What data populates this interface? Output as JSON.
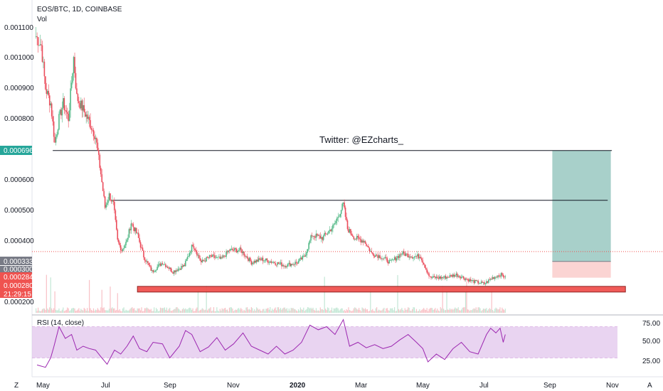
{
  "header": {
    "symbol": "EOS/BTC, 1D, COINBASE",
    "volume_label": "Vol",
    "rsi_label": "RSI (14, close)"
  },
  "annotation": "Twitter: @EZcharts_",
  "price_badges": {
    "resistance": "0.000696",
    "box_level": "0.000333",
    "current": "0.000284",
    "support": "0.000280",
    "countdown": "21:29:15",
    "hidden_label": "0.000300"
  },
  "bottom_buttons": {
    "left": "Z",
    "right": "A"
  },
  "colors": {
    "up": "#53b987",
    "down": "#eb4d5c",
    "zone": "#f05350",
    "target": "#9fcbc4",
    "rsi_line": "#9c27b0",
    "rsi_band": "#e1c6ec",
    "badge_green": "#26a69a",
    "badge_gray": "#787b86",
    "badge_red": "#ef5350"
  },
  "chart_data": [
    {
      "type": "candlestick",
      "title": "EOS/BTC, 1D, COINBASE",
      "x_ticks": [
        "May",
        "Jul",
        "Sep",
        "Nov",
        "2020",
        "Mar",
        "May",
        "Jul",
        "Sep",
        "Nov"
      ],
      "y_ticks": [
        "0.001100",
        "0.001000",
        "0.000900",
        "0.000800",
        "0.000600",
        "0.000500",
        "0.000400",
        "0.000200"
      ],
      "ylim": [
        0.00016,
        0.00115
      ],
      "close_path": [
        [
          "2019-04-26",
          0.00107
        ],
        [
          "2019-05-01",
          0.00104
        ],
        [
          "2019-05-05",
          0.0009
        ],
        [
          "2019-05-10",
          0.00085
        ],
        [
          "2019-05-14",
          0.00072
        ],
        [
          "2019-05-18",
          0.0008
        ],
        [
          "2019-05-22",
          0.00085
        ],
        [
          "2019-05-27",
          0.0008
        ],
        [
          "2019-06-01",
          0.001
        ],
        [
          "2019-06-04",
          0.00087
        ],
        [
          "2019-06-10",
          0.00083
        ],
        [
          "2019-06-16",
          0.00079
        ],
        [
          "2019-06-22",
          0.00074
        ],
        [
          "2019-06-27",
          0.00062
        ],
        [
          "2019-07-01",
          0.00051
        ],
        [
          "2019-07-05",
          0.00055
        ],
        [
          "2019-07-09",
          0.00052
        ],
        [
          "2019-07-13",
          0.0004
        ],
        [
          "2019-07-17",
          0.00037
        ],
        [
          "2019-07-22",
          0.0004
        ],
        [
          "2019-07-26",
          0.00046
        ],
        [
          "2019-08-01",
          0.00042
        ],
        [
          "2019-08-07",
          0.00035
        ],
        [
          "2019-08-15",
          0.0003
        ],
        [
          "2019-08-25",
          0.00033
        ],
        [
          "2019-09-04",
          0.0003
        ],
        [
          "2019-09-15",
          0.00032
        ],
        [
          "2019-09-23",
          0.00039
        ],
        [
          "2019-10-01",
          0.00033
        ],
        [
          "2019-10-10",
          0.00035
        ],
        [
          "2019-10-20",
          0.00034
        ],
        [
          "2019-10-28",
          0.00037
        ],
        [
          "2019-11-08",
          0.00037
        ],
        [
          "2019-11-18",
          0.00033
        ],
        [
          "2019-11-28",
          0.00034
        ],
        [
          "2019-12-10",
          0.00033
        ],
        [
          "2019-12-20",
          0.00032
        ],
        [
          "2020-01-01",
          0.00033
        ],
        [
          "2020-01-08",
          0.00035
        ],
        [
          "2020-01-15",
          0.00042
        ],
        [
          "2020-01-25",
          0.00041
        ],
        [
          "2020-02-05",
          0.00045
        ],
        [
          "2020-02-14",
          0.00052
        ],
        [
          "2020-02-18",
          0.00044
        ],
        [
          "2020-02-25",
          0.00041
        ],
        [
          "2020-03-05",
          0.0004
        ],
        [
          "2020-03-12",
          0.00036
        ],
        [
          "2020-03-20",
          0.00035
        ],
        [
          "2020-03-30",
          0.00033
        ],
        [
          "2020-04-10",
          0.00036
        ],
        [
          "2020-04-20",
          0.00035
        ],
        [
          "2020-04-28",
          0.00035
        ],
        [
          "2020-05-03",
          0.00031
        ],
        [
          "2020-05-07",
          0.00028
        ],
        [
          "2020-05-20",
          0.00028
        ],
        [
          "2020-06-01",
          0.00029
        ],
        [
          "2020-06-15",
          0.00027
        ],
        [
          "2020-06-28",
          0.00026
        ],
        [
          "2020-07-06",
          0.00028
        ],
        [
          "2020-07-13",
          0.00029
        ],
        [
          "2020-07-18",
          0.000284
        ]
      ],
      "horizontal_lines": [
        {
          "from": "2019-05-12",
          "to": "2020-10-28",
          "value": 0.000696
        },
        {
          "from": "2019-07-07",
          "to": "2020-10-24",
          "value": 0.000533
        }
      ],
      "support_zone": {
        "from": "2019-08-01",
        "to": "2020-11-10",
        "low": 0.00031,
        "high": 0.000333
      },
      "target_box": {
        "from": "2020-09-01",
        "to": "2020-10-27",
        "low": 0.00028,
        "high": 0.000696,
        "entry": 0.000333
      },
      "current_price": 0.000284
    },
    {
      "type": "line",
      "name": "RSI (14, close)",
      "y_ticks": [
        "75.00",
        "50.00",
        "25.00"
      ],
      "ylim": [
        10,
        80
      ],
      "band": [
        30,
        70
      ],
      "values": [
        [
          "2019-04-27",
          21
        ],
        [
          "2019-05-05",
          18
        ],
        [
          "2019-05-10",
          30
        ],
        [
          "2019-05-13",
          44
        ],
        [
          "2019-05-18",
          70
        ],
        [
          "2019-05-24",
          55
        ],
        [
          "2019-05-30",
          60
        ],
        [
          "2019-06-04",
          40
        ],
        [
          "2019-06-10",
          45
        ],
        [
          "2019-06-16",
          42
        ],
        [
          "2019-06-22",
          40
        ],
        [
          "2019-06-28",
          30
        ],
        [
          "2019-07-03",
          22
        ],
        [
          "2019-07-10",
          40
        ],
        [
          "2019-07-16",
          35
        ],
        [
          "2019-07-22",
          45
        ],
        [
          "2019-07-28",
          58
        ],
        [
          "2019-08-03",
          42
        ],
        [
          "2019-08-10",
          38
        ],
        [
          "2019-08-16",
          50
        ],
        [
          "2019-08-25",
          48
        ],
        [
          "2019-09-01",
          30
        ],
        [
          "2019-09-10",
          45
        ],
        [
          "2019-09-16",
          65
        ],
        [
          "2019-09-22",
          60
        ],
        [
          "2019-09-30",
          38
        ],
        [
          "2019-10-08",
          44
        ],
        [
          "2019-10-16",
          56
        ],
        [
          "2019-10-24",
          40
        ],
        [
          "2019-11-01",
          48
        ],
        [
          "2019-11-10",
          62
        ],
        [
          "2019-11-18",
          45
        ],
        [
          "2019-11-26",
          40
        ],
        [
          "2019-12-04",
          35
        ],
        [
          "2019-12-12",
          45
        ],
        [
          "2019-12-20",
          35
        ],
        [
          "2019-12-28",
          40
        ],
        [
          "2020-01-05",
          50
        ],
        [
          "2020-01-13",
          72
        ],
        [
          "2020-01-21",
          66
        ],
        [
          "2020-01-29",
          70
        ],
        [
          "2020-02-06",
          60
        ],
        [
          "2020-02-14",
          79
        ],
        [
          "2020-02-20",
          45
        ],
        [
          "2020-02-28",
          50
        ],
        [
          "2020-03-07",
          43
        ],
        [
          "2020-03-15",
          47
        ],
        [
          "2020-03-23",
          42
        ],
        [
          "2020-03-31",
          45
        ],
        [
          "2020-04-08",
          53
        ],
        [
          "2020-04-16",
          60
        ],
        [
          "2020-04-24",
          50
        ],
        [
          "2020-04-30",
          42
        ],
        [
          "2020-05-05",
          25
        ],
        [
          "2020-05-13",
          35
        ],
        [
          "2020-05-21",
          28
        ],
        [
          "2020-05-29",
          42
        ],
        [
          "2020-06-06",
          50
        ],
        [
          "2020-06-14",
          38
        ],
        [
          "2020-06-22",
          35
        ],
        [
          "2020-06-30",
          60
        ],
        [
          "2020-07-04",
          68
        ],
        [
          "2020-07-09",
          62
        ],
        [
          "2020-07-13",
          68
        ],
        [
          "2020-07-16",
          50
        ],
        [
          "2020-07-18",
          60
        ]
      ]
    }
  ]
}
